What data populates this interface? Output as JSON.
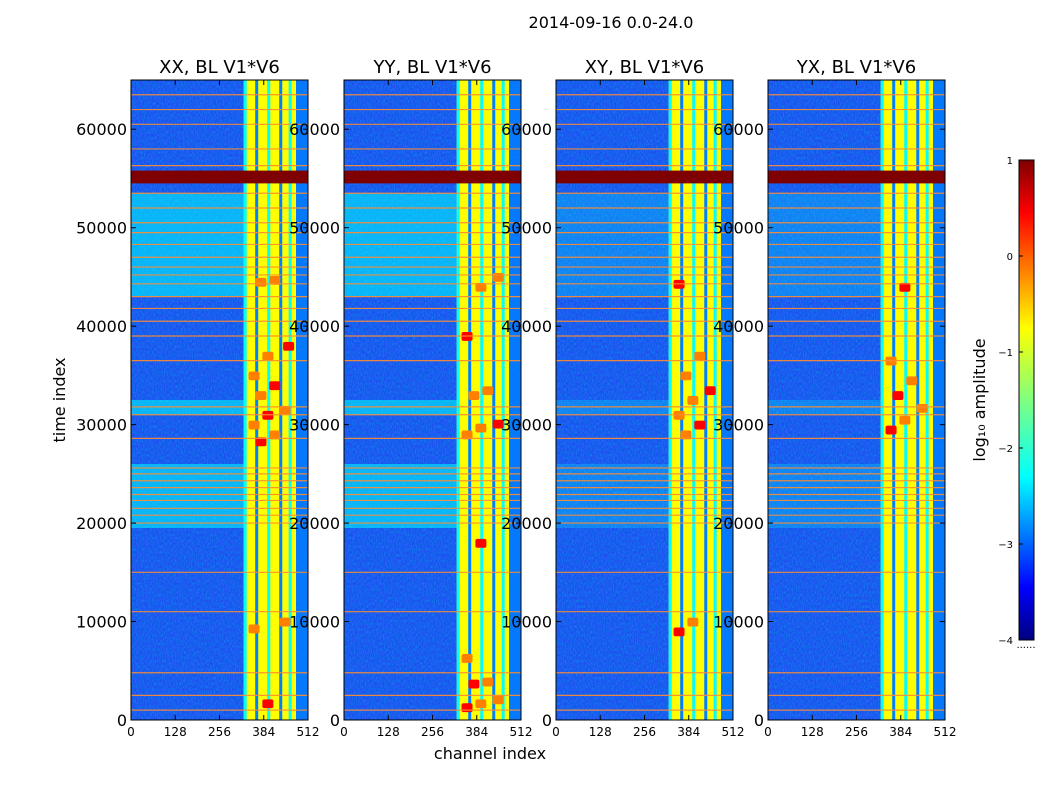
{
  "figure": {
    "suptitle": "2014-09-16 0.0-24.0",
    "xlabel": "channel index",
    "ylabel": "time index"
  },
  "colorbar": {
    "label": "log₁₀ amplitude",
    "range": [
      -4,
      1
    ],
    "ticks": [
      "1",
      "0",
      "−1",
      "−2",
      "−3",
      "−4"
    ],
    "footer": "......"
  },
  "colors": {
    "jet": [
      "#00007f",
      "#0000ff",
      "#007fff",
      "#00ffff",
      "#7fff7f",
      "#ffff00",
      "#ff7f00",
      "#ff0000",
      "#7f0000"
    ]
  },
  "chart_data": [
    {
      "type": "heatmap",
      "title": "XX, BL V1*V6",
      "xticks": [
        "0",
        "128",
        "256",
        "384",
        "512"
      ],
      "xlim": [
        0,
        512
      ],
      "yticks": [
        "0",
        "10000",
        "20000",
        "30000",
        "40000",
        "50000",
        "60000"
      ],
      "ylim": [
        0,
        65000
      ],
      "saturated_rows": [
        [
          54500,
          55800
        ]
      ],
      "flag_lines": [
        1000,
        2500,
        4800,
        11000,
        15000,
        20000,
        20800,
        21500,
        22300,
        22900,
        23600,
        24300,
        25000,
        25600,
        28600,
        31000,
        31800,
        36500,
        39000,
        40500,
        41800,
        43000,
        44300,
        45200,
        46000,
        47000,
        48300,
        49500,
        50500,
        52000,
        53500,
        56300,
        58000,
        60500,
        62000,
        63500
      ],
      "rfi_channel_range": [
        326,
        512
      ],
      "bright_blocks": [
        [
          380,
          1200
        ],
        [
          340,
          8800
        ],
        [
          430,
          9500
        ],
        [
          360,
          27800
        ],
        [
          400,
          28500
        ],
        [
          340,
          29500
        ],
        [
          380,
          30500
        ],
        [
          430,
          31000
        ],
        [
          360,
          32500
        ],
        [
          400,
          33500
        ],
        [
          340,
          34500
        ],
        [
          380,
          36500
        ],
        [
          440,
          37500
        ],
        [
          360,
          44000
        ],
        [
          400,
          44200
        ]
      ]
    },
    {
      "type": "heatmap",
      "title": "YY, BL V1*V6",
      "xticks": [
        "0",
        "128",
        "256",
        "384",
        "512"
      ],
      "xlim": [
        0,
        512
      ],
      "yticks": [
        "0",
        "10000",
        "20000",
        "30000",
        "40000",
        "50000",
        "60000"
      ],
      "ylim": [
        0,
        65000
      ],
      "saturated_rows": [
        [
          54500,
          55800
        ]
      ],
      "flag_lines": [
        1000,
        2500,
        4800,
        11000,
        15000,
        20000,
        20800,
        21500,
        22300,
        22900,
        23600,
        24300,
        25000,
        25600,
        28600,
        31000,
        31800,
        36500,
        39000,
        40500,
        41800,
        43000,
        44300,
        45200,
        46000,
        47000,
        48300,
        49500,
        50500,
        52000,
        53500,
        56300,
        58000,
        60500,
        62000,
        63500
      ],
      "rfi_channel_range": [
        326,
        512
      ],
      "bright_blocks": [
        [
          340,
          800
        ],
        [
          380,
          1200
        ],
        [
          430,
          1600
        ],
        [
          360,
          3200
        ],
        [
          400,
          3400
        ],
        [
          340,
          5800
        ],
        [
          380,
          17500
        ],
        [
          340,
          28500
        ],
        [
          380,
          29200
        ],
        [
          430,
          29600
        ],
        [
          360,
          32500
        ],
        [
          400,
          33000
        ],
        [
          340,
          38500
        ],
        [
          380,
          43500
        ],
        [
          430,
          44500
        ]
      ]
    },
    {
      "type": "heatmap",
      "title": "XY, BL V1*V6",
      "xticks": [
        "0",
        "128",
        "256",
        "384",
        "512"
      ],
      "xlim": [
        0,
        512
      ],
      "yticks": [
        "0",
        "10000",
        "20000",
        "30000",
        "40000",
        "50000",
        "60000"
      ],
      "ylim": [
        0,
        65000
      ],
      "saturated_rows": [
        [
          54500,
          55800
        ]
      ],
      "flag_lines": [
        1000,
        2500,
        4800,
        11000,
        15000,
        20000,
        20800,
        21500,
        22300,
        22900,
        23600,
        24300,
        25000,
        25600,
        28600,
        31000,
        31800,
        36500,
        39000,
        40500,
        41800,
        43000,
        44300,
        45200,
        46000,
        47000,
        48300,
        49500,
        50500,
        52000,
        53500,
        56300,
        58000,
        60500,
        62000,
        63500
      ],
      "rfi_channel_range": [
        326,
        512
      ],
      "bright_blocks": [
        [
          340,
          8500
        ],
        [
          380,
          9500
        ],
        [
          360,
          28500
        ],
        [
          400,
          29500
        ],
        [
          340,
          30500
        ],
        [
          380,
          32000
        ],
        [
          430,
          33000
        ],
        [
          360,
          34500
        ],
        [
          400,
          36500
        ],
        [
          340,
          43800
        ]
      ]
    },
    {
      "type": "heatmap",
      "title": "YX, BL V1*V6",
      "xticks": [
        "0",
        "128",
        "256",
        "384",
        "512"
      ],
      "xlim": [
        0,
        512
      ],
      "yticks": [
        "0",
        "10000",
        "20000",
        "30000",
        "40000",
        "50000",
        "60000"
      ],
      "ylim": [
        0,
        65000
      ],
      "saturated_rows": [
        [
          54500,
          55800
        ]
      ],
      "flag_lines": [
        1000,
        2500,
        4800,
        11000,
        15000,
        20000,
        20800,
        21500,
        22300,
        22900,
        23600,
        24300,
        25000,
        25600,
        28600,
        31000,
        31800,
        36500,
        39000,
        40500,
        41800,
        43000,
        44300,
        45200,
        46000,
        47000,
        48300,
        49500,
        50500,
        52000,
        53500,
        56300,
        58000,
        60500,
        62000,
        63500
      ],
      "rfi_channel_range": [
        326,
        512
      ],
      "bright_blocks": [
        [
          340,
          29000
        ],
        [
          380,
          30000
        ],
        [
          430,
          31200
        ],
        [
          360,
          32500
        ],
        [
          400,
          34000
        ],
        [
          340,
          36000
        ],
        [
          380,
          43500
        ]
      ]
    }
  ]
}
